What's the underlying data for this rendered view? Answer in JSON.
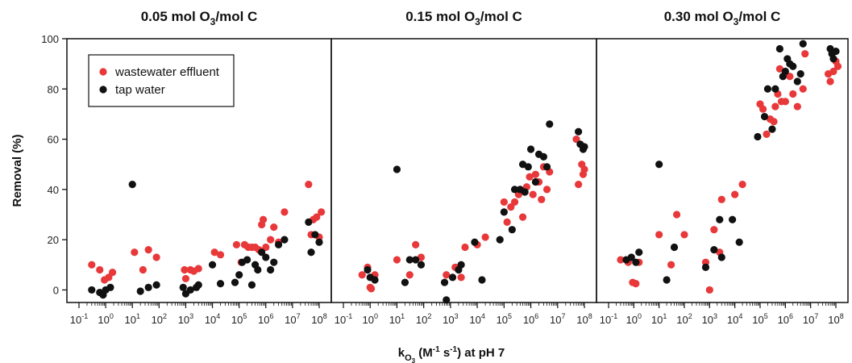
{
  "chart_data": {
    "type": "scatter",
    "ylabel": "Removal (%)",
    "xlabel_parts": {
      "k": "k",
      "sub": "O",
      "sub2": "3",
      "open": " (M",
      "exp1": "-1",
      "mid": " s",
      "exp2": "-1",
      "close": ") at pH 7"
    },
    "x_scale": "log",
    "xlim": [
      0.1,
      100000000
    ],
    "ylim": [
      -5,
      100
    ],
    "y_ticks": [
      0,
      20,
      40,
      60,
      80,
      100
    ],
    "x_tick_exponents": [
      "-1",
      "0",
      "1",
      "2",
      "3",
      "4",
      "5",
      "6",
      "7",
      "8"
    ],
    "legend": {
      "placement": "top-left of first panel",
      "entries": [
        {
          "name": "wastewater effluent",
          "color": "#e8383a"
        },
        {
          "name": "tap water",
          "color": "#111111"
        }
      ]
    },
    "panels": [
      {
        "title_parts": {
          "pre": "0.05 mol O",
          "sub": "3",
          "post": "/mol C"
        },
        "series": [
          {
            "name": "wastewater effluent",
            "points": [
              [
                0.3,
                10
              ],
              [
                0.6,
                8
              ],
              [
                0.9,
                4
              ],
              [
                1.3,
                5
              ],
              [
                1.8,
                7
              ],
              [
                12,
                15
              ],
              [
                25,
                8
              ],
              [
                40,
                16
              ],
              [
                80,
                13
              ],
              [
                900,
                8
              ],
              [
                1000,
                4.5
              ],
              [
                1500,
                8
              ],
              [
                2000,
                7.5
              ],
              [
                3000,
                8.5
              ],
              [
                12000.0,
                15
              ],
              [
                20000.0,
                14
              ],
              [
                80000.0,
                18
              ],
              [
                120000.0,
                11
              ],
              [
                160000.0,
                18
              ],
              [
                220000.0,
                17
              ],
              [
                300000.0,
                17
              ],
              [
                400000.0,
                17
              ],
              [
                550000.0,
                16
              ],
              [
                700000.0,
                26
              ],
              [
                800000.0,
                28
              ],
              [
                1000000.0,
                17
              ],
              [
                1500000.0,
                20
              ],
              [
                2000000.0,
                25
              ],
              [
                3000000.0,
                19
              ],
              [
                5000000.0,
                31
              ],
              [
                40000000.0,
                42
              ],
              [
                50000000.0,
                22
              ],
              [
                60000000.0,
                28
              ],
              [
                80000000.0,
                29
              ],
              [
                100000000.0,
                21
              ],
              [
                120000000.0,
                31
              ]
            ]
          },
          {
            "name": "tap water",
            "points": [
              [
                0.3,
                0
              ],
              [
                0.6,
                -1
              ],
              [
                0.8,
                -2
              ],
              [
                1.0,
                0
              ],
              [
                1.5,
                1
              ],
              [
                10,
                42
              ],
              [
                20,
                -0.5
              ],
              [
                40,
                1
              ],
              [
                80,
                2
              ],
              [
                800,
                1
              ],
              [
                1000,
                -1.5
              ],
              [
                1500,
                0
              ],
              [
                2500,
                1
              ],
              [
                3000,
                2
              ],
              [
                10000.0,
                10
              ],
              [
                20000.0,
                2.5
              ],
              [
                70000.0,
                3
              ],
              [
                100000.0,
                6
              ],
              [
                130000.0,
                11
              ],
              [
                200000.0,
                12
              ],
              [
                300000.0,
                2
              ],
              [
                400000.0,
                10
              ],
              [
                500000.0,
                8
              ],
              [
                700000.0,
                15
              ],
              [
                1000000.0,
                13
              ],
              [
                1500000.0,
                8
              ],
              [
                2000000.0,
                11
              ],
              [
                3000000.0,
                18
              ],
              [
                5000000.0,
                20
              ],
              [
                40000000.0,
                27
              ],
              [
                50000000.0,
                15
              ],
              [
                70000000.0,
                22
              ],
              [
                100000000.0,
                19
              ]
            ]
          }
        ]
      },
      {
        "title_parts": {
          "pre": "0.15 mol O",
          "sub": "3",
          "post": "/mol C"
        },
        "series": [
          {
            "name": "wastewater effluent",
            "points": [
              [
                0.5,
                6
              ],
              [
                0.8,
                9
              ],
              [
                1.0,
                1
              ],
              [
                1.1,
                0.5
              ],
              [
                1.5,
                6
              ],
              [
                10,
                12
              ],
              [
                30,
                6
              ],
              [
                50,
                18
              ],
              [
                80,
                13
              ],
              [
                700,
                6
              ],
              [
                1500,
                9
              ],
              [
                2500,
                5
              ],
              [
                3500,
                17
              ],
              [
                10000.0,
                18
              ],
              [
                20000.0,
                21
              ],
              [
                100000.0,
                35
              ],
              [
                130000.0,
                27
              ],
              [
                180000.0,
                33
              ],
              [
                250000.0,
                35
              ],
              [
                350000.0,
                38
              ],
              [
                500000.0,
                29
              ],
              [
                700000.0,
                41
              ],
              [
                900000.0,
                45
              ],
              [
                1200000.0,
                38
              ],
              [
                1500000.0,
                46
              ],
              [
                2000000.0,
                43
              ],
              [
                2500000.0,
                36
              ],
              [
                3000000.0,
                49
              ],
              [
                4000000.0,
                40
              ],
              [
                5000000.0,
                47
              ],
              [
                50000000.0,
                60
              ],
              [
                60000000.0,
                42
              ],
              [
                80000000.0,
                50
              ],
              [
                90000000.0,
                46
              ],
              [
                100000000.0,
                48
              ]
            ]
          },
          {
            "name": "tap water",
            "points": [
              [
                0.8,
                8
              ],
              [
                1.0,
                5
              ],
              [
                1.5,
                4
              ],
              [
                10,
                48
              ],
              [
                20,
                3
              ],
              [
                30,
                12
              ],
              [
                50,
                12
              ],
              [
                80,
                10
              ],
              [
                600,
                3
              ],
              [
                700,
                -4
              ],
              [
                1200,
                5
              ],
              [
                2000,
                8
              ],
              [
                2500,
                10
              ],
              [
                8000,
                19
              ],
              [
                15000.0,
                4
              ],
              [
                70000.0,
                20
              ],
              [
                100000.0,
                31
              ],
              [
                200000.0,
                24
              ],
              [
                250000.0,
                40
              ],
              [
                400000.0,
                40
              ],
              [
                500000.0,
                50
              ],
              [
                600000.0,
                39
              ],
              [
                800000.0,
                49
              ],
              [
                1000000.0,
                56
              ],
              [
                1500000.0,
                43
              ],
              [
                2000000.0,
                54
              ],
              [
                3000000.0,
                53
              ],
              [
                4000000.0,
                49
              ],
              [
                5000000.0,
                66
              ],
              [
                60000000.0,
                63
              ],
              [
                70000000.0,
                58
              ],
              [
                90000000.0,
                56
              ],
              [
                100000000.0,
                57
              ]
            ]
          }
        ]
      },
      {
        "title_parts": {
          "pre": "0.30 mol O",
          "sub": "3",
          "post": "/mol C"
        },
        "series": [
          {
            "name": "wastewater effluent",
            "points": [
              [
                0.3,
                12
              ],
              [
                0.6,
                11
              ],
              [
                0.9,
                3
              ],
              [
                1.2,
                2.5
              ],
              [
                1.6,
                11
              ],
              [
                10,
                22
              ],
              [
                30,
                10
              ],
              [
                50,
                30
              ],
              [
                100,
                22
              ],
              [
                700,
                11
              ],
              [
                1000,
                0
              ],
              [
                1500,
                24
              ],
              [
                2500,
                15
              ],
              [
                3000,
                36
              ],
              [
                10000.0,
                38
              ],
              [
                20000.0,
                42
              ],
              [
                100000.0,
                74
              ],
              [
                130000.0,
                72
              ],
              [
                180000.0,
                62
              ],
              [
                250000.0,
                68
              ],
              [
                350000.0,
                67
              ],
              [
                400000.0,
                73
              ],
              [
                500000.0,
                78
              ],
              [
                600000.0,
                88
              ],
              [
                700000.0,
                75
              ],
              [
                1000000.0,
                75
              ],
              [
                1500000.0,
                85
              ],
              [
                2000000.0,
                78
              ],
              [
                3000000.0,
                73
              ],
              [
                5000000.0,
                80
              ],
              [
                6000000.0,
                94
              ],
              [
                50000000.0,
                86
              ],
              [
                60000000.0,
                83
              ],
              [
                80000000.0,
                87
              ],
              [
                100000000.0,
                91
              ],
              [
                120000000.0,
                89
              ]
            ]
          },
          {
            "name": "tap water",
            "points": [
              [
                0.5,
                12
              ],
              [
                0.8,
                13
              ],
              [
                1.2,
                11
              ],
              [
                1.6,
                15
              ],
              [
                10,
                50
              ],
              [
                20,
                4
              ],
              [
                40,
                17
              ],
              [
                700,
                9
              ],
              [
                1500,
                16
              ],
              [
                2500,
                28
              ],
              [
                3000,
                13
              ],
              [
                8000,
                28
              ],
              [
                15000.0,
                19
              ],
              [
                80000.0,
                61
              ],
              [
                150000.0,
                69
              ],
              [
                200000.0,
                80
              ],
              [
                300000.0,
                64
              ],
              [
                400000.0,
                80
              ],
              [
                600000.0,
                96
              ],
              [
                800000.0,
                85
              ],
              [
                1000000.0,
                87
              ],
              [
                1200000.0,
                92
              ],
              [
                1500000.0,
                90
              ],
              [
                2000000.0,
                89
              ],
              [
                3000000.0,
                83
              ],
              [
                4000000.0,
                86
              ],
              [
                5000000.0,
                98
              ],
              [
                60000000.0,
                96
              ],
              [
                70000000.0,
                94
              ],
              [
                80000000.0,
                92
              ],
              [
                100000000.0,
                95
              ]
            ]
          }
        ]
      }
    ]
  }
}
